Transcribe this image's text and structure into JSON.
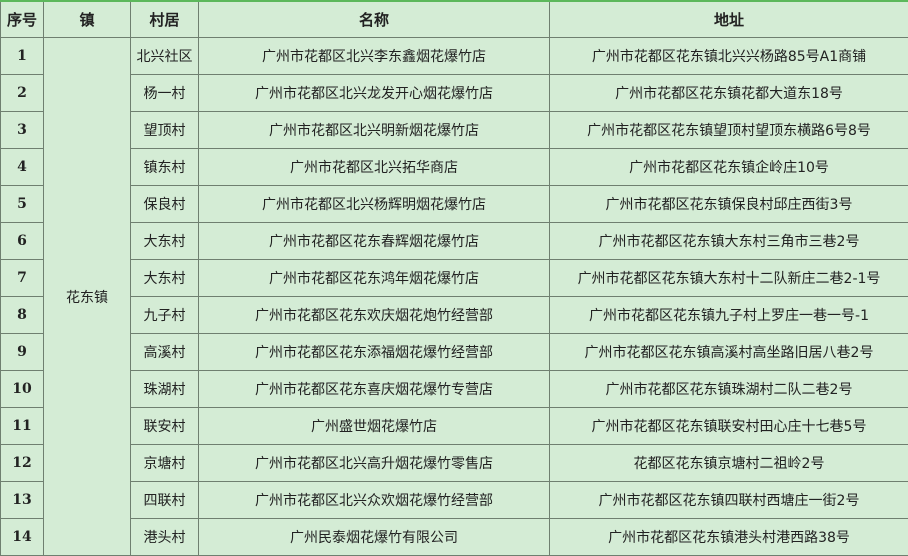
{
  "headers": {
    "index": "序号",
    "town": "镇",
    "village": "村居",
    "name": "名称",
    "address": "地址"
  },
  "town": "花东镇",
  "rows": [
    {
      "index": "1",
      "village": "北兴社区",
      "name": "广州市花都区北兴李东鑫烟花爆竹店",
      "address": "广州市花都区花东镇北兴兴杨路85号A1商铺"
    },
    {
      "index": "2",
      "village": "杨一村",
      "name": "广州市花都区北兴龙发开心烟花爆竹店",
      "address": "广州市花都区花东镇花都大道东18号"
    },
    {
      "index": "3",
      "village": "望顶村",
      "name": "广州市花都区北兴明新烟花爆竹店",
      "address": "广州市花都区花东镇望顶村望顶东横路6号8号"
    },
    {
      "index": "4",
      "village": "镇东村",
      "name": "广州市花都区北兴拓华商店",
      "address": "广州市花都区花东镇企岭庄10号"
    },
    {
      "index": "5",
      "village": "保良村",
      "name": "广州市花都区北兴杨辉明烟花爆竹店",
      "address": "广州市花都区花东镇保良村邱庄西街3号"
    },
    {
      "index": "6",
      "village": "大东村",
      "name": "广州市花都区花东春辉烟花爆竹店",
      "address": "广州市花都区花东镇大东村三角市三巷2号"
    },
    {
      "index": "7",
      "village": "大东村",
      "name": "广州市花都区花东鸿年烟花爆竹店",
      "address": "广州市花都区花东镇大东村十二队新庄二巷2-1号"
    },
    {
      "index": "8",
      "village": "九子村",
      "name": "广州市花都区花东欢庆烟花炮竹经营部",
      "address": "广州市花都区花东镇九子村上罗庄一巷一号-1"
    },
    {
      "index": "9",
      "village": "高溪村",
      "name": "广州市花都区花东添福烟花爆竹经营部",
      "address": "广州市花都区花东镇高溪村高坐路旧居八巷2号"
    },
    {
      "index": "10",
      "village": "珠湖村",
      "name": "广州市花都区花东喜庆烟花爆竹专营店",
      "address": "广州市花都区花东镇珠湖村二队二巷2号"
    },
    {
      "index": "11",
      "village": "联安村",
      "name": "广州盛世烟花爆竹店",
      "address": "广州市花都区花东镇联安村田心庄十七巷5号"
    },
    {
      "index": "12",
      "village": "京塘村",
      "name": "广州市花都区北兴高升烟花爆竹零售店",
      "address": "花都区花东镇京塘村二祖岭2号"
    },
    {
      "index": "13",
      "village": "四联村",
      "name": "广州市花都区北兴众欢烟花爆竹经营部",
      "address": "广州市花都区花东镇四联村西塘庄一街2号"
    },
    {
      "index": "14",
      "village": "港头村",
      "name": "广州民泰烟花爆竹有限公司",
      "address": "广州市花都区花东镇港头村港西路38号"
    }
  ]
}
